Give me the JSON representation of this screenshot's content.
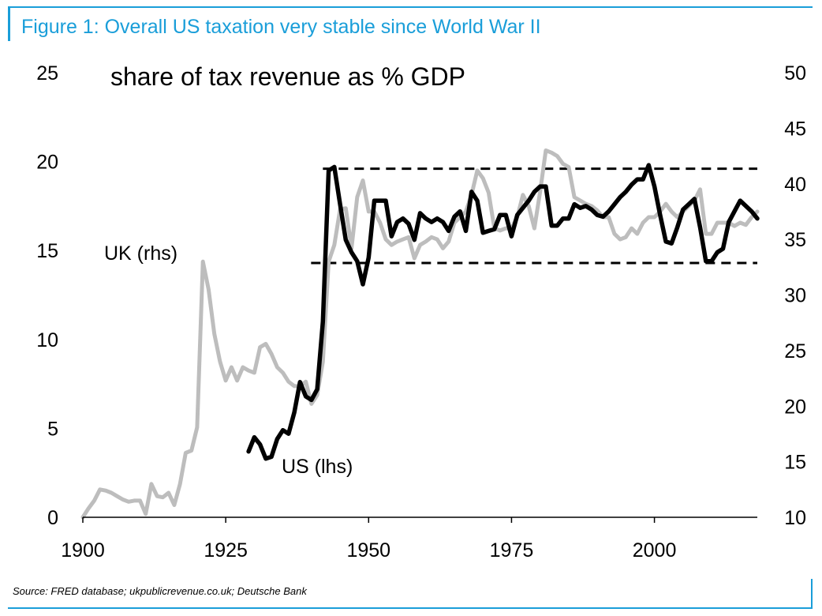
{
  "header": {
    "figure_title": "Figure 1: Overall US taxation very stable since World War II"
  },
  "footer": {
    "source": "Source: FRED database; ukpublicrevenue.co.uk; Deutsche Bank"
  },
  "colors": {
    "accent": "#1a9ed9",
    "us_series": "#000000",
    "uk_series": "#bdbdbd"
  },
  "chart_data": {
    "type": "line",
    "title": "share of tax revenue as % GDP",
    "xlabel": "",
    "ylabel_left": "",
    "ylabel_right": "",
    "xlim": [
      1900,
      2018
    ],
    "ylim_left": [
      0,
      25
    ],
    "ylim_right": [
      10,
      50
    ],
    "x_ticks": [
      1900,
      1925,
      1950,
      1975,
      2000
    ],
    "y_ticks_left": [
      0,
      5,
      10,
      15,
      20,
      25
    ],
    "y_ticks_right": [
      10,
      15,
      20,
      25,
      30,
      35,
      40,
      45,
      50
    ],
    "reference_band_left": [
      14.3,
      19.6
    ],
    "reference_band_x": [
      1942,
      2018
    ],
    "annotations": {
      "uk": "UK (rhs)",
      "us": "US (lhs)"
    },
    "series": [
      {
        "name": "UK (rhs)",
        "axis": "right",
        "x": [
          1900,
          1901,
          1902,
          1903,
          1904,
          1905,
          1906,
          1907,
          1908,
          1909,
          1910,
          1911,
          1912,
          1913,
          1914,
          1915,
          1916,
          1917,
          1918,
          1919,
          1920,
          1921,
          1922,
          1923,
          1924,
          1925,
          1926,
          1927,
          1928,
          1929,
          1930,
          1931,
          1932,
          1933,
          1934,
          1935,
          1936,
          1937,
          1938,
          1939,
          1940,
          1941,
          1942,
          1943,
          1944,
          1945,
          1946,
          1947,
          1948,
          1949,
          1950,
          1951,
          1952,
          1953,
          1954,
          1955,
          1956,
          1957,
          1958,
          1959,
          1960,
          1961,
          1962,
          1963,
          1964,
          1965,
          1966,
          1967,
          1968,
          1969,
          1970,
          1971,
          1972,
          1973,
          1974,
          1975,
          1976,
          1977,
          1978,
          1979,
          1980,
          1981,
          1982,
          1983,
          1984,
          1985,
          1986,
          1987,
          1988,
          1989,
          1990,
          1991,
          1992,
          1993,
          1994,
          1995,
          1996,
          1997,
          1998,
          1999,
          2000,
          2001,
          2002,
          2003,
          2004,
          2005,
          2006,
          2007,
          2008,
          2009,
          2010,
          2011,
          2012,
          2013,
          2014,
          2015,
          2016,
          2017,
          2018
        ],
        "values": [
          10,
          10.8,
          11.5,
          12.5,
          12.4,
          12.2,
          11.9,
          11.6,
          11.4,
          11.5,
          11.5,
          10.3,
          13,
          11.9,
          11.8,
          12.2,
          11.1,
          13,
          15.8,
          16,
          18.1,
          33,
          30.5,
          26.5,
          24,
          22.3,
          23.5,
          22.3,
          23.5,
          23.2,
          23,
          25.3,
          25.6,
          24.7,
          23.5,
          23,
          22.2,
          21.8,
          21.8,
          22.2,
          20.2,
          21,
          24,
          33,
          34.5,
          37.7,
          37.8,
          34.2,
          38.8,
          40.3,
          37.5,
          37.5,
          36.5,
          35,
          34.5,
          34.8,
          35,
          35.2,
          33.3,
          34.5,
          34.8,
          35.2,
          35,
          34.2,
          34.8,
          36.5,
          37,
          37.5,
          39,
          41.2,
          40.5,
          39.2,
          36,
          35.8,
          36,
          36,
          37,
          39,
          38,
          36,
          39.3,
          43,
          42.8,
          42.5,
          41.8,
          41.5,
          38.8,
          38.5,
          38.2,
          38,
          37.6,
          37,
          37,
          35.5,
          35,
          35.2,
          36,
          35.5,
          36.5,
          37,
          37,
          37.5,
          38.2,
          37.5,
          37,
          37.5,
          38,
          38.5,
          39.5,
          35.5,
          35.5,
          36.5,
          36.5,
          36.5,
          36.2,
          36.5,
          36.3,
          37,
          37.5
        ]
      },
      {
        "name": "US (lhs)",
        "axis": "left",
        "x": [
          1929,
          1930,
          1931,
          1932,
          1933,
          1934,
          1935,
          1936,
          1937,
          1938,
          1939,
          1940,
          1941,
          1942,
          1943,
          1944,
          1945,
          1946,
          1947,
          1948,
          1949,
          1950,
          1951,
          1952,
          1953,
          1954,
          1955,
          1956,
          1957,
          1958,
          1959,
          1960,
          1961,
          1962,
          1963,
          1964,
          1965,
          1966,
          1967,
          1968,
          1969,
          1970,
          1971,
          1972,
          1973,
          1974,
          1975,
          1976,
          1977,
          1978,
          1979,
          1980,
          1981,
          1982,
          1983,
          1984,
          1985,
          1986,
          1987,
          1988,
          1989,
          1990,
          1991,
          1992,
          1993,
          1994,
          1995,
          1996,
          1997,
          1998,
          1999,
          2000,
          2001,
          2002,
          2003,
          2004,
          2005,
          2006,
          2007,
          2008,
          2009,
          2010,
          2011,
          2012,
          2013,
          2014,
          2015,
          2016,
          2017,
          2018
        ],
        "values": [
          3.7,
          4.5,
          4.1,
          3.3,
          3.4,
          4.4,
          4.9,
          4.7,
          5.9,
          7.6,
          6.8,
          6.6,
          7.2,
          11,
          19.5,
          19.7,
          17.6,
          15.6,
          14.9,
          14.4,
          13.1,
          14.6,
          17.8,
          17.8,
          17.8,
          15.8,
          16.6,
          16.8,
          16.5,
          15.6,
          17.1,
          16.8,
          16.6,
          16.8,
          16.6,
          16.1,
          16.9,
          17.2,
          16.1,
          18.3,
          17.8,
          16,
          16.1,
          16.2,
          17,
          17,
          15.8,
          17,
          17.4,
          17.8,
          18.3,
          18.6,
          18.6,
          16.4,
          16.4,
          16.8,
          16.8,
          17.6,
          17.4,
          17.5,
          17.3,
          17,
          16.9,
          17.2,
          17.6,
          18,
          18.3,
          18.7,
          19,
          19,
          19.8,
          18.6,
          17,
          15.5,
          15.4,
          16.3,
          17.3,
          17.6,
          17.9,
          16.3,
          14.4,
          14.4,
          14.9,
          15.1,
          16.6,
          17.2,
          17.8,
          17.5,
          17.2,
          16.8
        ]
      }
    ]
  }
}
